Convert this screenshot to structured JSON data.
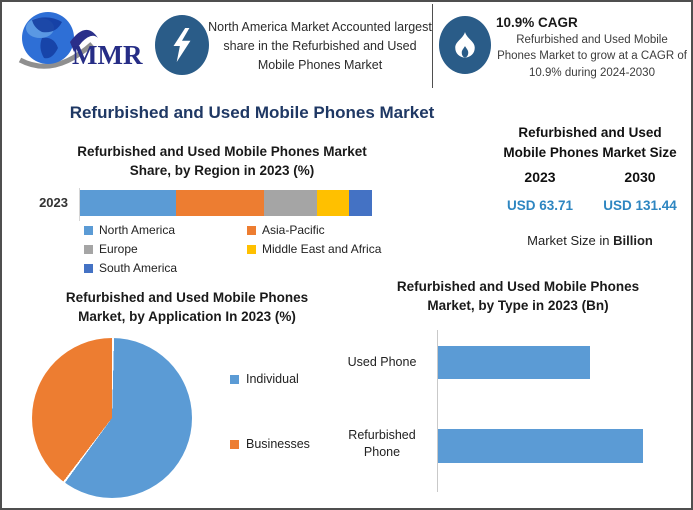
{
  "header": {
    "logo_text": "MMR",
    "highlight_text": "North America Market Accounted largest share in the Refurbished and Used Mobile Phones Market",
    "cagr_title": "10.9% CAGR",
    "cagr_description": "Refurbished and Used Mobile Phones Market to grow at a CAGR of 10.9% during 2024-2030"
  },
  "main_title": "Refurbished and Used Mobile Phones Market",
  "colors": {
    "icon_blue": "#2A5C88",
    "title_navy": "#1F3864",
    "value_blue": "#2E86C1",
    "series_blue": "#5B9BD5",
    "series_orange": "#ED7D31",
    "series_gray": "#A5A5A5",
    "series_yellow": "#FFC000",
    "series_darkblue": "#4472C4"
  },
  "market_size_panel": {
    "title_line1": "Refurbished and Used",
    "title_line2": "Mobile Phones Market Size",
    "year_start": "2023",
    "year_end": "2030",
    "value_start": "USD 63.71",
    "value_end": "USD 131.44",
    "footnote_prefix": "Market Size in ",
    "footnote_bold": "Billion"
  },
  "chart_data": [
    {
      "id": "region_share",
      "type": "bar",
      "subtype": "stacked-horizontal",
      "title": "Refurbished and Used Mobile Phones Market Share, by Region in 2023 (%)",
      "title_line1": "Refurbished and Used Mobile Phones Market",
      "title_line2": "Share, by Region in 2023 (%)",
      "categories": [
        "2023"
      ],
      "series": [
        {
          "name": "North America",
          "value": 33,
          "color": "#5B9BD5"
        },
        {
          "name": "Asia-Pacific",
          "value": 30,
          "color": "#ED7D31"
        },
        {
          "name": "Europe",
          "value": 18,
          "color": "#A5A5A5"
        },
        {
          "name": "Middle East and Africa",
          "value": 11,
          "color": "#FFC000"
        },
        {
          "name": "South America",
          "value": 8,
          "color": "#4472C4"
        }
      ],
      "xlim": [
        0,
        100
      ],
      "unit": "%",
      "legend_position": "bottom"
    },
    {
      "id": "application_share",
      "type": "pie",
      "title": "Refurbished and Used Mobile Phones Market, by Application In 2023 (%)",
      "title_line1": "Refurbished and Used Mobile Phones",
      "title_line2": "Market, by Application In 2023 (%)",
      "slices": [
        {
          "name": "Individual",
          "value": 60,
          "color": "#5B9BD5"
        },
        {
          "name": "Businesses",
          "value": 40,
          "color": "#ED7D31"
        }
      ],
      "unit": "%",
      "legend_position": "right"
    },
    {
      "id": "type_market",
      "type": "bar",
      "subtype": "horizontal",
      "title": "Refurbished and Used Mobile Phones Market, by Type in 2023 (Bn)",
      "title_line1": "Refurbished and Used Mobile Phones",
      "title_line2": "Market, by Type in 2023 (Bn)",
      "categories": [
        "Used Phone",
        "Refurbished Phone"
      ],
      "values": [
        27.1,
        36.6
      ],
      "unit": "Bn",
      "bar_color": "#5B9BD5"
    }
  ]
}
